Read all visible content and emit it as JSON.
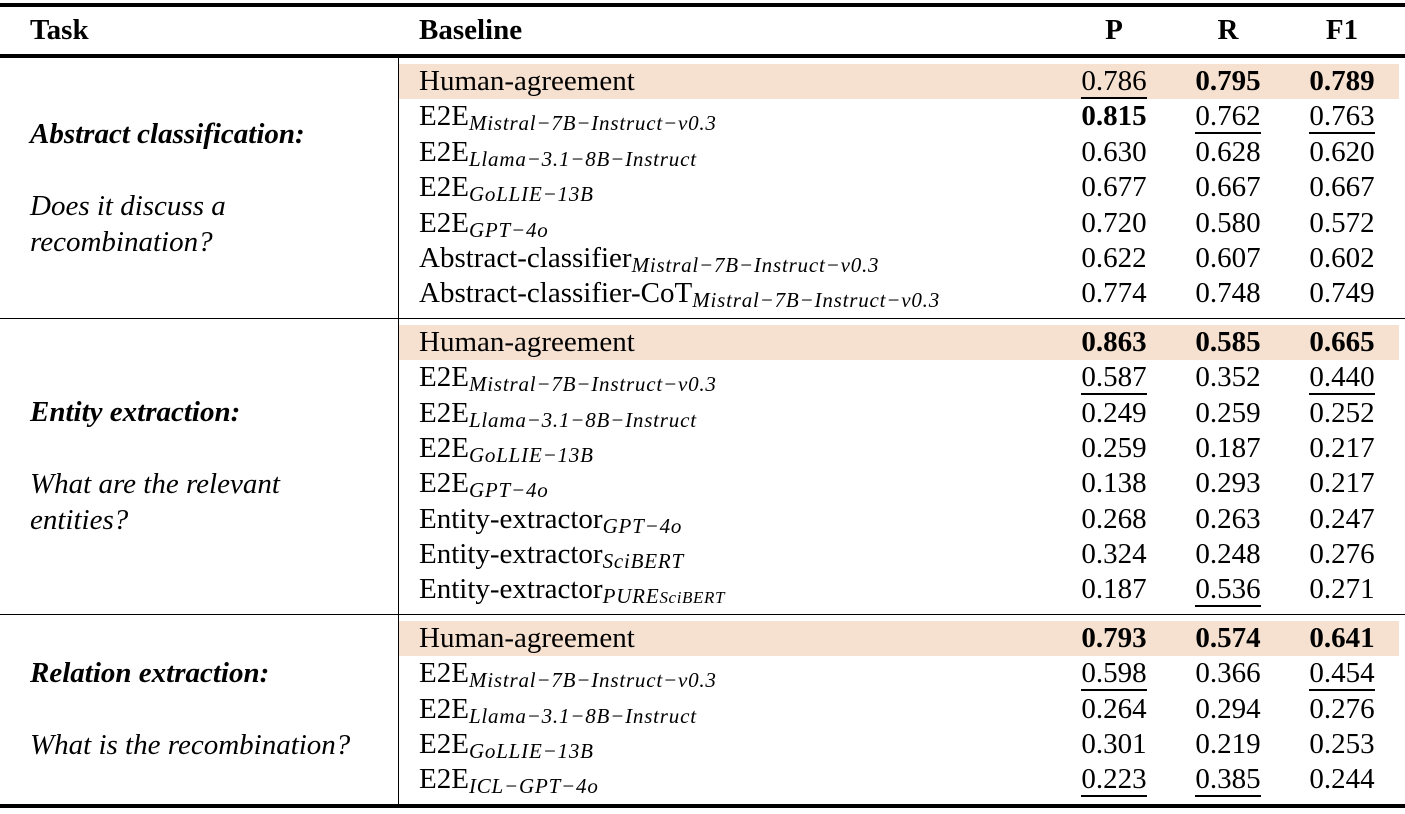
{
  "page": {
    "background": "#ffffff",
    "text_color": "#000000",
    "highlight_color": "#f6e1d0"
  },
  "header": {
    "task": "Task",
    "baseline": "Baseline",
    "metrics": [
      "P",
      "R",
      "F1"
    ]
  },
  "sections": [
    {
      "task_title": "Abstract classification:",
      "task_question_lines": [
        "Does it discuss a",
        "recombination?"
      ],
      "rows": [
        {
          "baseline": "Human-agreement",
          "sub": "",
          "subsub": "",
          "highlight": true,
          "cells": [
            {
              "value": "0.786",
              "style": "underline"
            },
            {
              "value": "0.795",
              "style": "bold"
            },
            {
              "value": "0.789",
              "style": "bold"
            }
          ]
        },
        {
          "baseline": "E2E",
          "sub": "Mistral−7B−Instruct−v0.3",
          "subsub": "",
          "highlight": false,
          "cells": [
            {
              "value": "0.815",
              "style": "bold"
            },
            {
              "value": "0.762",
              "style": "underline"
            },
            {
              "value": "0.763",
              "style": "underline"
            }
          ]
        },
        {
          "baseline": "E2E",
          "sub": "Llama−3.1−8B−Instruct",
          "subsub": "",
          "highlight": false,
          "cells": [
            {
              "value": "0.630",
              "style": "plain"
            },
            {
              "value": "0.628",
              "style": "plain"
            },
            {
              "value": "0.620",
              "style": "plain"
            }
          ]
        },
        {
          "baseline": "E2E",
          "sub": "GoLLIE−13B",
          "subsub": "",
          "highlight": false,
          "cells": [
            {
              "value": "0.677",
              "style": "plain"
            },
            {
              "value": "0.667",
              "style": "plain"
            },
            {
              "value": "0.667",
              "style": "plain"
            }
          ]
        },
        {
          "baseline": "E2E",
          "sub": "GPT−4o",
          "subsub": "",
          "highlight": false,
          "cells": [
            {
              "value": "0.720",
              "style": "plain"
            },
            {
              "value": "0.580",
              "style": "plain"
            },
            {
              "value": "0.572",
              "style": "plain"
            }
          ]
        },
        {
          "baseline": "Abstract-classifier",
          "sub": "Mistral−7B−Instruct−v0.3",
          "subsub": "",
          "highlight": false,
          "cells": [
            {
              "value": "0.622",
              "style": "plain"
            },
            {
              "value": "0.607",
              "style": "plain"
            },
            {
              "value": "0.602",
              "style": "plain"
            }
          ]
        },
        {
          "baseline": "Abstract-classifier-CoT",
          "sub": "Mistral−7B−Instruct−v0.3",
          "subsub": "",
          "highlight": false,
          "cells": [
            {
              "value": "0.774",
              "style": "plain"
            },
            {
              "value": "0.748",
              "style": "plain"
            },
            {
              "value": "0.749",
              "style": "plain"
            }
          ]
        }
      ]
    },
    {
      "task_title": "Entity extraction:",
      "task_question_lines": [
        "What are the relevant",
        "entities?"
      ],
      "rows": [
        {
          "baseline": "Human-agreement",
          "sub": "",
          "subsub": "",
          "highlight": true,
          "cells": [
            {
              "value": "0.863",
              "style": "bold"
            },
            {
              "value": "0.585",
              "style": "bold"
            },
            {
              "value": "0.665",
              "style": "bold"
            }
          ]
        },
        {
          "baseline": "E2E",
          "sub": "Mistral−7B−Instruct−v0.3",
          "subsub": "",
          "highlight": false,
          "cells": [
            {
              "value": "0.587",
              "style": "underline"
            },
            {
              "value": "0.352",
              "style": "plain"
            },
            {
              "value": "0.440",
              "style": "underline"
            }
          ]
        },
        {
          "baseline": "E2E",
          "sub": "Llama−3.1−8B−Instruct",
          "subsub": "",
          "highlight": false,
          "cells": [
            {
              "value": "0.249",
              "style": "plain"
            },
            {
              "value": "0.259",
              "style": "plain"
            },
            {
              "value": "0.252",
              "style": "plain"
            }
          ]
        },
        {
          "baseline": "E2E",
          "sub": "GoLLIE−13B",
          "subsub": "",
          "highlight": false,
          "cells": [
            {
              "value": "0.259",
              "style": "plain"
            },
            {
              "value": "0.187",
              "style": "plain"
            },
            {
              "value": "0.217",
              "style": "plain"
            }
          ]
        },
        {
          "baseline": "E2E",
          "sub": "GPT−4o",
          "subsub": "",
          "highlight": false,
          "cells": [
            {
              "value": "0.138",
              "style": "plain"
            },
            {
              "value": "0.293",
              "style": "plain"
            },
            {
              "value": "0.217",
              "style": "plain"
            }
          ]
        },
        {
          "baseline": "Entity-extractor",
          "sub": "GPT−4o",
          "subsub": "",
          "highlight": false,
          "cells": [
            {
              "value": "0.268",
              "style": "plain"
            },
            {
              "value": "0.263",
              "style": "plain"
            },
            {
              "value": "0.247",
              "style": "plain"
            }
          ]
        },
        {
          "baseline": "Entity-extractor",
          "sub": "SciBERT",
          "subsub": "",
          "highlight": false,
          "cells": [
            {
              "value": "0.324",
              "style": "plain"
            },
            {
              "value": "0.248",
              "style": "plain"
            },
            {
              "value": "0.276",
              "style": "plain"
            }
          ]
        },
        {
          "baseline": "Entity-extractor",
          "sub": "PURE",
          "subsub": "SciBERT",
          "highlight": false,
          "cells": [
            {
              "value": "0.187",
              "style": "plain"
            },
            {
              "value": "0.536",
              "style": "underline"
            },
            {
              "value": "0.271",
              "style": "plain"
            }
          ]
        }
      ]
    },
    {
      "task_title": "Relation extraction:",
      "task_question_lines": [
        "What is the recombination?"
      ],
      "rows": [
        {
          "baseline": "Human-agreement",
          "sub": "",
          "subsub": "",
          "highlight": true,
          "cells": [
            {
              "value": "0.793",
              "style": "bold"
            },
            {
              "value": "0.574",
              "style": "bold"
            },
            {
              "value": "0.641",
              "style": "bold"
            }
          ]
        },
        {
          "baseline": "E2E",
          "sub": "Mistral−7B−Instruct−v0.3",
          "subsub": "",
          "highlight": false,
          "cells": [
            {
              "value": "0.598",
              "style": "underline"
            },
            {
              "value": "0.366",
              "style": "plain"
            },
            {
              "value": "0.454",
              "style": "underline"
            }
          ]
        },
        {
          "baseline": "E2E",
          "sub": "Llama−3.1−8B−Instruct",
          "subsub": "",
          "highlight": false,
          "cells": [
            {
              "value": "0.264",
              "style": "plain"
            },
            {
              "value": "0.294",
              "style": "plain"
            },
            {
              "value": "0.276",
              "style": "plain"
            }
          ]
        },
        {
          "baseline": "E2E",
          "sub": "GoLLIE−13B",
          "subsub": "",
          "highlight": false,
          "cells": [
            {
              "value": "0.301",
              "style": "plain"
            },
            {
              "value": "0.219",
              "style": "plain"
            },
            {
              "value": "0.253",
              "style": "plain"
            }
          ]
        },
        {
          "baseline": "E2E",
          "sub": "ICL−GPT−4o",
          "subsub": "",
          "highlight": false,
          "cells": [
            {
              "value": "0.223",
              "style": "underline"
            },
            {
              "value": "0.385",
              "style": "underline"
            },
            {
              "value": "0.244",
              "style": "plain"
            }
          ]
        }
      ]
    }
  ]
}
